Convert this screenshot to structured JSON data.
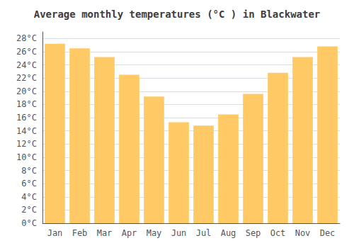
{
  "chart_data": {
    "type": "bar",
    "title": "Average monthly temperatures (°C ) in Blackwater",
    "categories": [
      "Jan",
      "Feb",
      "Mar",
      "Apr",
      "May",
      "Jun",
      "Jul",
      "Aug",
      "Sep",
      "Oct",
      "Nov",
      "Dec"
    ],
    "values": [
      27.2,
      26.5,
      25.2,
      22.5,
      19.2,
      15.3,
      14.8,
      16.5,
      19.6,
      22.8,
      25.2,
      26.8
    ],
    "color": "#FFCA66",
    "ylim": [
      0,
      29
    ],
    "yticks": [
      {
        "value": 0,
        "label": "0°C"
      },
      {
        "value": 2,
        "label": "2°C"
      },
      {
        "value": 4,
        "label": "4°C"
      },
      {
        "value": 6,
        "label": "6°C"
      },
      {
        "value": 8,
        "label": "8°C"
      },
      {
        "value": 10,
        "label": "10°C"
      },
      {
        "value": 12,
        "label": "12°C"
      },
      {
        "value": 14,
        "label": "14°C"
      },
      {
        "value": 16,
        "label": "16°C"
      },
      {
        "value": 18,
        "label": "18°C"
      },
      {
        "value": 20,
        "label": "20°C"
      },
      {
        "value": 22,
        "label": "22°C"
      },
      {
        "value": 24,
        "label": "24°C"
      },
      {
        "value": 26,
        "label": "26°C"
      },
      {
        "value": 28,
        "label": "28°C"
      }
    ],
    "grid": true
  }
}
